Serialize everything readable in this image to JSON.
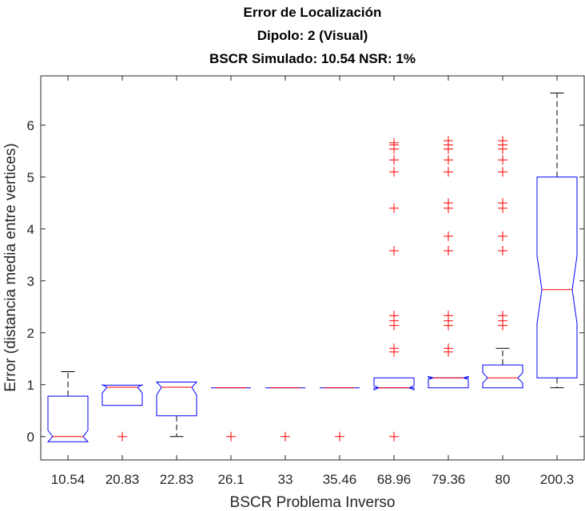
{
  "chart_data": {
    "type": "box",
    "title": [
      "Error de Localización",
      "Dipolo: 2 (Visual)",
      "BSCR Simulado: 10.54 NSR: 1%"
    ],
    "xlabel": "BSCR Problema Inverso",
    "ylabel": "Error (distancia media entre vertices)",
    "categories": [
      "10.54",
      "20.83",
      "22.83",
      "26.1",
      "33",
      "35.46",
      "68.96",
      "79.36",
      "80",
      "200.3"
    ],
    "ylim": [
      -0.45,
      6.95
    ],
    "yticks": [
      0,
      1,
      2,
      3,
      4,
      5,
      6
    ],
    "grid": false,
    "colors": {
      "box": "#0000ff",
      "median": "#ff0000",
      "outlier": "#ff0000",
      "whisker": "#000000",
      "axis": "#262626"
    },
    "boxes": [
      {
        "category": "10.54",
        "q1": -0.1,
        "median": 0.0,
        "q3": 0.78,
        "notch_low": -0.1,
        "notch_high": 0.12,
        "whisker_low": null,
        "whisker_high": 1.25,
        "outliers": []
      },
      {
        "category": "20.83",
        "q1": 0.6,
        "median": 0.95,
        "q3": 0.99,
        "notch_low": 0.84,
        "notch_high": 1.0,
        "whisker_low": null,
        "whisker_high": null,
        "outliers": [
          0.0
        ]
      },
      {
        "category": "22.83",
        "q1": 0.4,
        "median": 0.95,
        "q3": 1.05,
        "notch_low": 0.8,
        "notch_high": 1.05,
        "whisker_low": 0.0,
        "whisker_high": null,
        "outliers": []
      },
      {
        "category": "26.1",
        "q1": 0.94,
        "median": 0.94,
        "q3": 0.94,
        "notch_low": 0.94,
        "notch_high": 0.94,
        "whisker_low": null,
        "whisker_high": null,
        "outliers": [
          0.0
        ]
      },
      {
        "category": "33",
        "q1": 0.94,
        "median": 0.94,
        "q3": 0.94,
        "notch_low": 0.94,
        "notch_high": 0.94,
        "whisker_low": null,
        "whisker_high": null,
        "outliers": [
          0.0
        ]
      },
      {
        "category": "35.46",
        "q1": 0.94,
        "median": 0.94,
        "q3": 0.94,
        "notch_low": 0.94,
        "notch_high": 0.94,
        "whisker_low": null,
        "whisker_high": null,
        "outliers": [
          0.0
        ]
      },
      {
        "category": "68.96",
        "q1": 0.94,
        "median": 0.94,
        "q3": 1.13,
        "notch_low": 0.9,
        "notch_high": 0.98,
        "whisker_low": null,
        "whisker_high": null,
        "outliers": [
          0.0,
          1.63,
          1.7,
          2.14,
          2.23,
          2.33,
          3.58,
          4.4,
          5.1,
          5.33,
          5.54,
          5.62,
          5.66
        ]
      },
      {
        "category": "79.36",
        "q1": 0.94,
        "median": 1.13,
        "q3": 1.13,
        "notch_low": 1.1,
        "notch_high": 1.16,
        "whisker_low": null,
        "whisker_high": null,
        "outliers": [
          1.63,
          1.7,
          2.14,
          2.23,
          2.33,
          3.58,
          3.86,
          4.4,
          4.5,
          5.1,
          5.33,
          5.54,
          5.62,
          5.7
        ]
      },
      {
        "category": "80",
        "q1": 0.94,
        "median": 1.13,
        "q3": 1.38,
        "notch_low": 1.03,
        "notch_high": 1.23,
        "whisker_low": null,
        "whisker_high": 1.7,
        "outliers": [
          2.14,
          2.23,
          2.33,
          3.58,
          3.86,
          4.4,
          4.5,
          5.1,
          5.33,
          5.54,
          5.62,
          5.7
        ]
      },
      {
        "category": "200.3",
        "q1": 1.13,
        "median": 2.83,
        "q3": 5.0,
        "notch_low": 2.18,
        "notch_high": 3.48,
        "whisker_low": 0.94,
        "whisker_high": 6.62,
        "outliers": []
      }
    ]
  }
}
